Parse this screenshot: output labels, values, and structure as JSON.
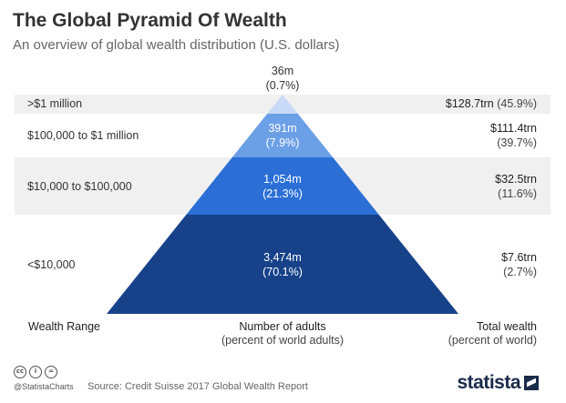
{
  "header": {
    "title": "The Global Pyramid Of Wealth",
    "subtitle": "An overview of global wealth distribution (U.S. dollars)"
  },
  "chart_data": {
    "type": "pyramid",
    "title": "The Global Pyramid Of Wealth",
    "subtitle": "An overview of global wealth distribution (U.S. dollars)",
    "tiers": [
      {
        "range": ">$1 million",
        "adults": "36m",
        "adults_value_millions": 36,
        "adults_pct": "(0.7%)",
        "adults_pct_value": 0.7,
        "wealth": "$128.7trn",
        "wealth_value_trn": 128.7,
        "wealth_pct": "(45.9%)",
        "wealth_pct_value": 45.9,
        "color": "#c9daf8"
      },
      {
        "range": "$100,000 to $1 million",
        "adults": "391m",
        "adults_value_millions": 391,
        "adults_pct": "(7.9%)",
        "adults_pct_value": 7.9,
        "wealth": "$111.4trn",
        "wealth_value_trn": 111.4,
        "wealth_pct": "(39.7%)",
        "wealth_pct_value": 39.7,
        "color": "#6b9fe6"
      },
      {
        "range": "$10,000 to $100,000",
        "adults": "1,054m",
        "adults_value_millions": 1054,
        "adults_pct": "(21.3%)",
        "adults_pct_value": 21.3,
        "wealth": "$32.5trn",
        "wealth_value_trn": 32.5,
        "wealth_pct": "(11.6%)",
        "wealth_pct_value": 11.6,
        "color": "#2b6fd6"
      },
      {
        "range": "<$10,000",
        "adults": "3,474m",
        "adults_value_millions": 3474,
        "adults_pct": "(70.1%)",
        "adults_pct_value": 70.1,
        "wealth": "$7.6trn",
        "wealth_value_trn": 7.6,
        "wealth_pct": "(2.7%)",
        "wealth_pct_value": 2.7,
        "color": "#17428a"
      }
    ],
    "columns": {
      "left": "Wealth Range",
      "center": "Number of adults",
      "center_sub": "(percent of world adults)",
      "right": "Total wealth",
      "right_sub": "(percent of world)"
    }
  },
  "footer": {
    "handle": "@StatistaCharts",
    "source": "Source: Credit Suisse 2017 Global Wealth Report",
    "brand": "statista",
    "license_icons": [
      "cc",
      "by",
      "nd"
    ]
  }
}
